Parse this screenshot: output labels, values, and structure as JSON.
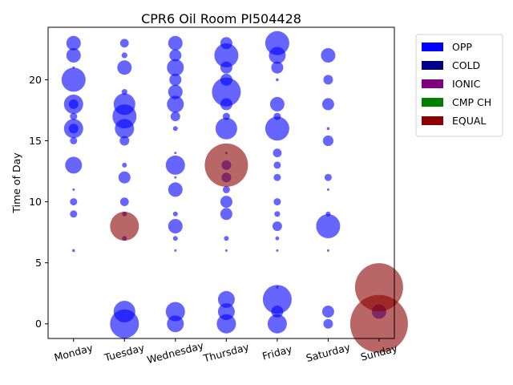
{
  "chart_data": {
    "type": "scatter",
    "title": "CPR6 Oil Room PI504428",
    "xlabel": "",
    "ylabel": "Time of Day",
    "categories": [
      "Monday",
      "Tuesday",
      "Wednesday",
      "Thursday",
      "Friday",
      "Saturday",
      "Sunday"
    ],
    "xlim": [
      -0.5,
      6.3
    ],
    "ylim": [
      -1.2,
      24.3
    ],
    "yticks": [
      0,
      5,
      10,
      15,
      20
    ],
    "grid": false,
    "legend_position": "outside-top-right",
    "legend": [
      {
        "label": "OPP",
        "color": "#0000ff"
      },
      {
        "label": "COLD",
        "color": "#00008b"
      },
      {
        "label": "IONIC",
        "color": "#800080"
      },
      {
        "label": "CMP CH",
        "color": "#008000"
      },
      {
        "label": "EQUAL",
        "color": "#8b0000"
      }
    ],
    "series": [
      {
        "name": "OPP",
        "color": "#0000ff",
        "points": [
          {
            "x": 0,
            "y": 23,
            "size": 3
          },
          {
            "x": 0,
            "y": 22,
            "size": 3
          },
          {
            "x": 0,
            "y": 21,
            "size": 0.5
          },
          {
            "x": 0,
            "y": 20,
            "size": 5
          },
          {
            "x": 0,
            "y": 18,
            "size": 4
          },
          {
            "x": 0,
            "y": 18,
            "size": 2
          },
          {
            "x": 0,
            "y": 17,
            "size": 1.5
          },
          {
            "x": 0,
            "y": 16,
            "size": 4
          },
          {
            "x": 0,
            "y": 16,
            "size": 2
          },
          {
            "x": 0,
            "y": 15,
            "size": 1.5
          },
          {
            "x": 0,
            "y": 13,
            "size": 3.5
          },
          {
            "x": 0,
            "y": 11,
            "size": 0.5
          },
          {
            "x": 0,
            "y": 10,
            "size": 1.5
          },
          {
            "x": 0,
            "y": 9,
            "size": 1.5
          },
          {
            "x": 0,
            "y": 6,
            "size": 0.6
          },
          {
            "x": 1,
            "y": 23,
            "size": 1.8
          },
          {
            "x": 1,
            "y": 22,
            "size": 1.2
          },
          {
            "x": 1,
            "y": 21,
            "size": 3
          },
          {
            "x": 1,
            "y": 19,
            "size": 1.2
          },
          {
            "x": 1,
            "y": 18,
            "size": 4.5
          },
          {
            "x": 1,
            "y": 17,
            "size": 5
          },
          {
            "x": 1,
            "y": 16,
            "size": 4
          },
          {
            "x": 1,
            "y": 15,
            "size": 2
          },
          {
            "x": 1,
            "y": 13,
            "size": 1
          },
          {
            "x": 1,
            "y": 12,
            "size": 2.5
          },
          {
            "x": 1,
            "y": 10,
            "size": 1.8
          },
          {
            "x": 1,
            "y": 9,
            "size": 1
          },
          {
            "x": 1,
            "y": 7,
            "size": 1
          },
          {
            "x": 1,
            "y": 1,
            "size": 4.5
          },
          {
            "x": 1,
            "y": 0,
            "size": 6
          },
          {
            "x": 2,
            "y": 23,
            "size": 3
          },
          {
            "x": 2,
            "y": 22,
            "size": 2.5
          },
          {
            "x": 2,
            "y": 21,
            "size": 3.5
          },
          {
            "x": 2,
            "y": 20,
            "size": 2.5
          },
          {
            "x": 2,
            "y": 19,
            "size": 3
          },
          {
            "x": 2,
            "y": 18,
            "size": 3.5
          },
          {
            "x": 2,
            "y": 17,
            "size": 2
          },
          {
            "x": 2,
            "y": 16,
            "size": 1
          },
          {
            "x": 2,
            "y": 14,
            "size": 0.5
          },
          {
            "x": 2,
            "y": 13,
            "size": 4
          },
          {
            "x": 2,
            "y": 12,
            "size": 0.5
          },
          {
            "x": 2,
            "y": 11,
            "size": 3
          },
          {
            "x": 2,
            "y": 9,
            "size": 1
          },
          {
            "x": 2,
            "y": 8,
            "size": 3
          },
          {
            "x": 2,
            "y": 7,
            "size": 1
          },
          {
            "x": 2,
            "y": 6,
            "size": 0.5
          },
          {
            "x": 2,
            "y": 1,
            "size": 4
          },
          {
            "x": 2,
            "y": 0,
            "size": 3.5
          },
          {
            "x": 3,
            "y": 23,
            "size": 2.5
          },
          {
            "x": 3,
            "y": 22,
            "size": 5
          },
          {
            "x": 3,
            "y": 21,
            "size": 2.5
          },
          {
            "x": 3,
            "y": 20,
            "size": 2.5
          },
          {
            "x": 3,
            "y": 19,
            "size": 6
          },
          {
            "x": 3,
            "y": 18,
            "size": 2.5
          },
          {
            "x": 3,
            "y": 17,
            "size": 1.5
          },
          {
            "x": 3,
            "y": 16,
            "size": 4.5
          },
          {
            "x": 3,
            "y": 14,
            "size": 0.5
          },
          {
            "x": 3,
            "y": 13,
            "size": 2
          },
          {
            "x": 3,
            "y": 12,
            "size": 2
          },
          {
            "x": 3,
            "y": 11,
            "size": 1.5
          },
          {
            "x": 3,
            "y": 10,
            "size": 2.5
          },
          {
            "x": 3,
            "y": 9,
            "size": 2.5
          },
          {
            "x": 3,
            "y": 7,
            "size": 1
          },
          {
            "x": 3,
            "y": 6,
            "size": 0.5
          },
          {
            "x": 3,
            "y": 2,
            "size": 3.5
          },
          {
            "x": 3,
            "y": 1,
            "size": 3.5
          },
          {
            "x": 3,
            "y": 0,
            "size": 4
          },
          {
            "x": 4,
            "y": 23,
            "size": 5
          },
          {
            "x": 4,
            "y": 22,
            "size": 3.5
          },
          {
            "x": 4,
            "y": 21,
            "size": 2.5
          },
          {
            "x": 4,
            "y": 20,
            "size": 0.6
          },
          {
            "x": 4,
            "y": 18,
            "size": 3
          },
          {
            "x": 4,
            "y": 17,
            "size": 1.5
          },
          {
            "x": 4,
            "y": 16,
            "size": 5
          },
          {
            "x": 4,
            "y": 14,
            "size": 1.8
          },
          {
            "x": 4,
            "y": 13,
            "size": 1.5
          },
          {
            "x": 4,
            "y": 12,
            "size": 1.5
          },
          {
            "x": 4,
            "y": 10,
            "size": 1.5
          },
          {
            "x": 4,
            "y": 9,
            "size": 1.2
          },
          {
            "x": 4,
            "y": 8,
            "size": 2
          },
          {
            "x": 4,
            "y": 7,
            "size": 0.8
          },
          {
            "x": 4,
            "y": 6,
            "size": 0.5
          },
          {
            "x": 4,
            "y": 3,
            "size": 0.5
          },
          {
            "x": 4,
            "y": 2,
            "size": 6
          },
          {
            "x": 4,
            "y": 1,
            "size": 2.5
          },
          {
            "x": 4,
            "y": 0,
            "size": 4
          },
          {
            "x": 5,
            "y": 22,
            "size": 3
          },
          {
            "x": 5,
            "y": 20,
            "size": 2
          },
          {
            "x": 5,
            "y": 18,
            "size": 2.5
          },
          {
            "x": 5,
            "y": 16,
            "size": 0.6
          },
          {
            "x": 5,
            "y": 15,
            "size": 2.2
          },
          {
            "x": 5,
            "y": 12,
            "size": 1.5
          },
          {
            "x": 5,
            "y": 11,
            "size": 0.5
          },
          {
            "x": 5,
            "y": 9,
            "size": 1
          },
          {
            "x": 5,
            "y": 8,
            "size": 5
          },
          {
            "x": 5,
            "y": 6,
            "size": 0.5
          },
          {
            "x": 5,
            "y": 1,
            "size": 2.5
          },
          {
            "x": 5,
            "y": 0,
            "size": 2
          },
          {
            "x": 6,
            "y": 1,
            "size": 3
          }
        ]
      },
      {
        "name": "EQUAL",
        "color": "#8b0000",
        "points": [
          {
            "x": 1,
            "y": 8,
            "size": 6
          },
          {
            "x": 3,
            "y": 13,
            "size": 9
          },
          {
            "x": 6,
            "y": 3,
            "size": 10
          },
          {
            "x": 6,
            "y": 0,
            "size": 12
          }
        ]
      }
    ]
  }
}
